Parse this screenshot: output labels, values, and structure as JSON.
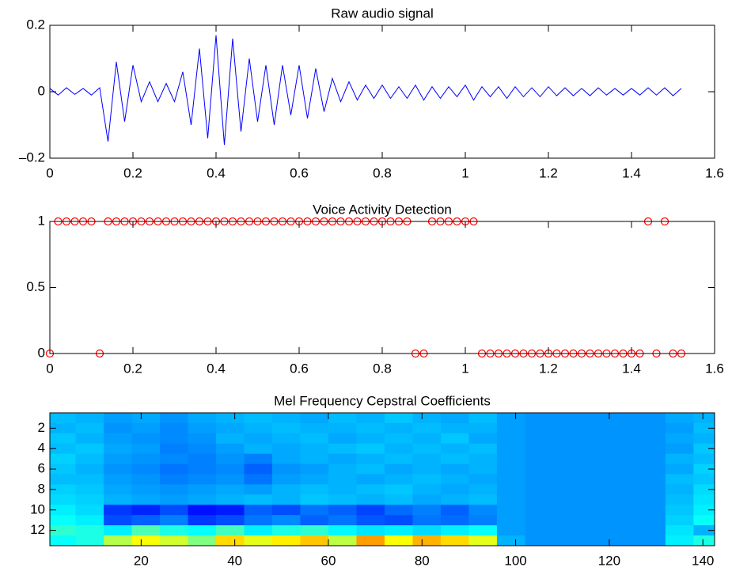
{
  "chart_data": [
    {
      "type": "line",
      "title": "Raw audio signal",
      "color": "#0000ff",
      "x": [
        0,
        0.02,
        0.04,
        0.06,
        0.08,
        0.1,
        0.12,
        0.14,
        0.16,
        0.18,
        0.2,
        0.22,
        0.24,
        0.26,
        0.28,
        0.3,
        0.32,
        0.34,
        0.36,
        0.38,
        0.4,
        0.42,
        0.44,
        0.46,
        0.48,
        0.5,
        0.52,
        0.54,
        0.56,
        0.58,
        0.6,
        0.62,
        0.64,
        0.66,
        0.68,
        0.7,
        0.72,
        0.74,
        0.76,
        0.78,
        0.8,
        0.82,
        0.84,
        0.86,
        0.88,
        0.9,
        0.92,
        0.94,
        0.96,
        0.98,
        1,
        1.02,
        1.04,
        1.06,
        1.08,
        1.1,
        1.12,
        1.14,
        1.16,
        1.18,
        1.2,
        1.22,
        1.24,
        1.26,
        1.28,
        1.3,
        1.32,
        1.34,
        1.36,
        1.38,
        1.4,
        1.42,
        1.44,
        1.46,
        1.48,
        1.5,
        1.52
      ],
      "values": [
        0.01,
        -0.01,
        0.012,
        -0.008,
        0.01,
        -0.01,
        0.012,
        -0.15,
        0.09,
        -0.09,
        0.08,
        -0.03,
        0.03,
        -0.03,
        0.025,
        -0.03,
        0.06,
        -0.1,
        0.13,
        -0.14,
        0.17,
        -0.16,
        0.16,
        -0.12,
        0.1,
        -0.09,
        0.08,
        -0.1,
        0.08,
        -0.07,
        0.08,
        -0.08,
        0.07,
        -0.06,
        0.04,
        -0.03,
        0.03,
        -0.025,
        0.02,
        -0.02,
        0.02,
        -0.02,
        0.015,
        -0.02,
        0.02,
        -0.025,
        0.015,
        -0.02,
        0.015,
        -0.015,
        0.02,
        -0.025,
        0.015,
        -0.015,
        0.015,
        -0.02,
        0.015,
        -0.015,
        0.012,
        -0.015,
        0.015,
        -0.012,
        0.012,
        -0.012,
        0.01,
        -0.012,
        0.012,
        -0.01,
        0.01,
        -0.01,
        0.01,
        -0.01,
        0.012,
        -0.01,
        0.012,
        -0.012,
        0.01
      ],
      "xlim": [
        0,
        1.6
      ],
      "xticks": [
        0,
        0.2,
        0.4,
        0.6,
        0.8,
        1,
        1.2,
        1.4,
        1.6
      ],
      "ylim": [
        -0.2,
        0.2
      ],
      "yticks": [
        {
          "value": -0.2,
          "label": "–0.2"
        },
        0,
        0.2
      ]
    },
    {
      "type": "scatter",
      "title": "Voice Activity Detection",
      "color": "#ff0000",
      "x": [
        0,
        0.02,
        0.04,
        0.06,
        0.08,
        0.1,
        0.12,
        0.14,
        0.16,
        0.18,
        0.2,
        0.22,
        0.24,
        0.26,
        0.28,
        0.3,
        0.32,
        0.34,
        0.36,
        0.38,
        0.4,
        0.42,
        0.44,
        0.46,
        0.48,
        0.5,
        0.52,
        0.54,
        0.56,
        0.58,
        0.6,
        0.62,
        0.64,
        0.66,
        0.68,
        0.7,
        0.72,
        0.74,
        0.76,
        0.78,
        0.8,
        0.82,
        0.84,
        0.86,
        0.88,
        0.9,
        0.92,
        0.94,
        0.96,
        0.98,
        1,
        1.02,
        1.04,
        1.06,
        1.08,
        1.1,
        1.12,
        1.14,
        1.16,
        1.18,
        1.2,
        1.22,
        1.24,
        1.26,
        1.28,
        1.3,
        1.32,
        1.34,
        1.36,
        1.38,
        1.4,
        1.42,
        1.44,
        1.46,
        1.48,
        1.5,
        1.52
      ],
      "values": [
        0,
        1,
        1,
        1,
        1,
        1,
        0,
        1,
        1,
        1,
        1,
        1,
        1,
        1,
        1,
        1,
        1,
        1,
        1,
        1,
        1,
        1,
        1,
        1,
        1,
        1,
        1,
        1,
        1,
        1,
        1,
        1,
        1,
        1,
        1,
        1,
        1,
        1,
        1,
        1,
        1,
        1,
        1,
        1,
        0,
        0,
        1,
        1,
        1,
        1,
        1,
        1,
        0,
        0,
        0,
        0,
        0,
        0,
        0,
        0,
        0,
        0,
        0,
        0,
        0,
        0,
        0,
        0,
        0,
        0,
        0,
        0,
        1,
        0,
        1,
        0,
        0
      ],
      "xlim": [
        0,
        1.6
      ],
      "xticks": [
        0,
        0.2,
        0.4,
        0.6,
        0.8,
        1,
        1.2,
        1.4,
        1.6
      ],
      "ylim": [
        0,
        1
      ],
      "yticks": [
        0,
        0.5,
        1
      ]
    },
    {
      "type": "heatmap",
      "title": "Mel Frequency Cepstral Coefficients",
      "colormap": "jet",
      "clim": [
        0,
        1
      ],
      "x": [
        3,
        9,
        15,
        21,
        27,
        33,
        39,
        45,
        51,
        57,
        63,
        69,
        75,
        81,
        87,
        93,
        99,
        105,
        111,
        117,
        123,
        129,
        135,
        141
      ],
      "y": [
        1,
        2,
        3,
        4,
        5,
        6,
        7,
        8,
        9,
        10,
        11,
        12,
        13
      ],
      "z": [
        [
          0.31,
          0.3,
          0.28,
          0.29,
          0.27,
          0.29,
          0.3,
          0.31,
          0.3,
          0.29,
          0.31,
          0.3,
          0.32,
          0.3,
          0.29,
          0.31,
          0.28,
          0.27,
          0.27,
          0.27,
          0.27,
          0.27,
          0.29,
          0.3
        ],
        [
          0.3,
          0.31,
          0.27,
          0.28,
          0.26,
          0.28,
          0.29,
          0.3,
          0.31,
          0.3,
          0.3,
          0.31,
          0.3,
          0.31,
          0.3,
          0.3,
          0.28,
          0.27,
          0.27,
          0.27,
          0.27,
          0.27,
          0.28,
          0.31
        ],
        [
          0.32,
          0.3,
          0.28,
          0.27,
          0.26,
          0.27,
          0.3,
          0.29,
          0.3,
          0.31,
          0.29,
          0.3,
          0.31,
          0.3,
          0.32,
          0.29,
          0.28,
          0.27,
          0.27,
          0.27,
          0.27,
          0.27,
          0.29,
          0.3
        ],
        [
          0.31,
          0.32,
          0.29,
          0.28,
          0.25,
          0.26,
          0.28,
          0.3,
          0.29,
          0.3,
          0.31,
          0.32,
          0.3,
          0.31,
          0.3,
          0.31,
          0.28,
          0.27,
          0.27,
          0.27,
          0.27,
          0.27,
          0.28,
          0.32
        ],
        [
          0.33,
          0.31,
          0.28,
          0.27,
          0.26,
          0.25,
          0.27,
          0.25,
          0.29,
          0.3,
          0.29,
          0.3,
          0.31,
          0.3,
          0.31,
          0.3,
          0.28,
          0.27,
          0.27,
          0.27,
          0.27,
          0.27,
          0.3,
          0.31
        ],
        [
          0.32,
          0.3,
          0.27,
          0.26,
          0.24,
          0.25,
          0.26,
          0.22,
          0.27,
          0.28,
          0.3,
          0.31,
          0.29,
          0.3,
          0.29,
          0.3,
          0.28,
          0.27,
          0.27,
          0.27,
          0.27,
          0.27,
          0.29,
          0.33
        ],
        [
          0.31,
          0.31,
          0.28,
          0.27,
          0.25,
          0.26,
          0.27,
          0.24,
          0.28,
          0.29,
          0.3,
          0.29,
          0.3,
          0.31,
          0.3,
          0.29,
          0.28,
          0.27,
          0.27,
          0.27,
          0.27,
          0.27,
          0.31,
          0.32
        ],
        [
          0.33,
          0.32,
          0.29,
          0.28,
          0.27,
          0.28,
          0.29,
          0.28,
          0.3,
          0.31,
          0.3,
          0.31,
          0.32,
          0.3,
          0.29,
          0.3,
          0.28,
          0.27,
          0.27,
          0.27,
          0.27,
          0.27,
          0.3,
          0.34
        ],
        [
          0.34,
          0.33,
          0.3,
          0.29,
          0.28,
          0.29,
          0.3,
          0.31,
          0.3,
          0.32,
          0.31,
          0.3,
          0.31,
          0.29,
          0.3,
          0.31,
          0.28,
          0.27,
          0.27,
          0.27,
          0.27,
          0.27,
          0.31,
          0.35
        ],
        [
          0.36,
          0.34,
          0.18,
          0.16,
          0.2,
          0.14,
          0.15,
          0.22,
          0.2,
          0.24,
          0.22,
          0.19,
          0.23,
          0.25,
          0.22,
          0.26,
          0.28,
          0.27,
          0.27,
          0.27,
          0.27,
          0.27,
          0.32,
          0.36
        ],
        [
          0.38,
          0.36,
          0.2,
          0.22,
          0.25,
          0.18,
          0.2,
          0.24,
          0.26,
          0.22,
          0.24,
          0.21,
          0.2,
          0.24,
          0.23,
          0.25,
          0.28,
          0.27,
          0.27,
          0.27,
          0.27,
          0.27,
          0.33,
          0.38
        ],
        [
          0.42,
          0.4,
          0.36,
          0.45,
          0.4,
          0.38,
          0.44,
          0.36,
          0.4,
          0.42,
          0.37,
          0.35,
          0.36,
          0.34,
          0.36,
          0.38,
          0.28,
          0.27,
          0.27,
          0.27,
          0.27,
          0.27,
          0.35,
          0.3
        ],
        [
          0.38,
          0.4,
          0.55,
          0.62,
          0.58,
          0.5,
          0.66,
          0.6,
          0.64,
          0.68,
          0.56,
          0.72,
          0.62,
          0.7,
          0.66,
          0.6,
          0.3,
          0.27,
          0.27,
          0.27,
          0.27,
          0.27,
          0.36,
          0.4
        ]
      ],
      "xlim": [
        0.5,
        142.5
      ],
      "xticks": [
        20,
        40,
        60,
        80,
        100,
        120,
        140
      ],
      "ylim": [
        13.5,
        0.5
      ],
      "yticks": [
        2,
        4,
        6,
        8,
        10,
        12
      ]
    }
  ]
}
